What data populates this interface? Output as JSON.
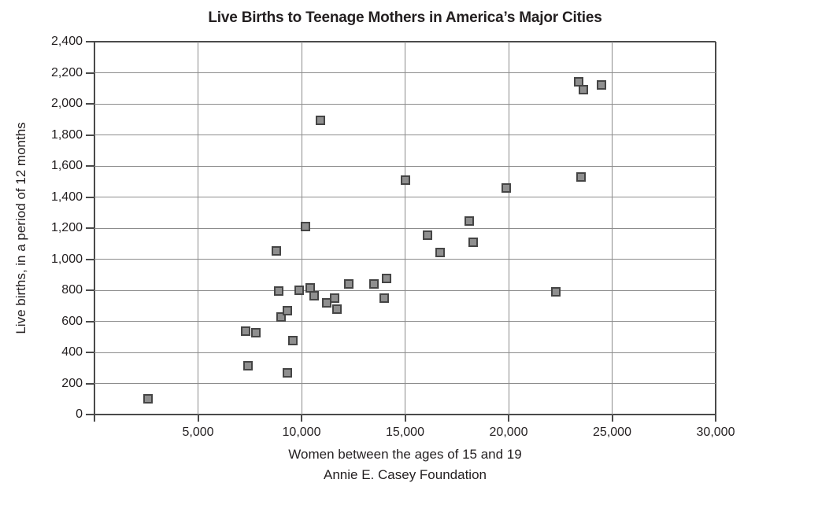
{
  "title": "Live Births to Teenage Mothers in America’s Major Cities",
  "chart_data": {
    "type": "scatter",
    "title": "Live Births to Teenage Mothers in America’s Major Cities",
    "xlabel": "Women between the ages of 15 and 19",
    "source_label": "Annie E. Casey Foundation",
    "ylabel": "Live births, in a period of 12 months",
    "xlim": [
      0,
      30000
    ],
    "ylim": [
      0,
      2400
    ],
    "grid": true,
    "legend": false,
    "x_ticks": [
      {
        "value": 0,
        "label": ""
      },
      {
        "value": 5000,
        "label": "5,000"
      },
      {
        "value": 10000,
        "label": "10,000"
      },
      {
        "value": 15000,
        "label": "15,000"
      },
      {
        "value": 20000,
        "label": "20,000"
      },
      {
        "value": 25000,
        "label": "25,000"
      },
      {
        "value": 30000,
        "label": "30,000"
      }
    ],
    "y_ticks": [
      {
        "value": 0,
        "label": "0"
      },
      {
        "value": 200,
        "label": "200"
      },
      {
        "value": 400,
        "label": "400"
      },
      {
        "value": 600,
        "label": "600"
      },
      {
        "value": 800,
        "label": "800"
      },
      {
        "value": 1000,
        "label": "1,000"
      },
      {
        "value": 1200,
        "label": "1,200"
      },
      {
        "value": 1400,
        "label": "1,400"
      },
      {
        "value": 1600,
        "label": "1,600"
      },
      {
        "value": 1800,
        "label": "1,800"
      },
      {
        "value": 2000,
        "label": "2,000"
      },
      {
        "value": 2200,
        "label": "2,200"
      },
      {
        "value": 2400,
        "label": "2,400"
      }
    ],
    "marker": {
      "shape": "square",
      "fill": "#8f8f8f",
      "border": "#454545"
    },
    "points": [
      [
        2600,
        100
      ],
      [
        7300,
        535
      ],
      [
        7400,
        315
      ],
      [
        7800,
        525
      ],
      [
        8800,
        1055
      ],
      [
        8900,
        795
      ],
      [
        9000,
        630
      ],
      [
        9300,
        270
      ],
      [
        9300,
        670
      ],
      [
        9600,
        475
      ],
      [
        9900,
        800
      ],
      [
        10200,
        1210
      ],
      [
        10400,
        815
      ],
      [
        10600,
        765
      ],
      [
        10900,
        1895
      ],
      [
        11200,
        720
      ],
      [
        11600,
        750
      ],
      [
        11700,
        680
      ],
      [
        12300,
        840
      ],
      [
        13500,
        840
      ],
      [
        14000,
        750
      ],
      [
        14100,
        875
      ],
      [
        15000,
        1510
      ],
      [
        16100,
        1155
      ],
      [
        16700,
        1045
      ],
      [
        18100,
        1245
      ],
      [
        18300,
        1110
      ],
      [
        19900,
        1460
      ],
      [
        22300,
        790
      ],
      [
        23400,
        2140
      ],
      [
        23500,
        1530
      ],
      [
        23600,
        2090
      ],
      [
        24500,
        2120
      ]
    ]
  },
  "colors": {
    "background": "#ffffff",
    "grid": "#8c8c8c",
    "axis": "#4a4a4a",
    "text": "#231f20"
  }
}
